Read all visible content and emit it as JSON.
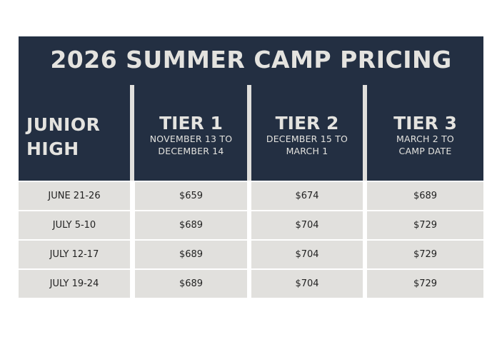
{
  "title": "2026 SUMMER CAMP PRICING",
  "first_header": [
    "JUNIOR",
    "HIGH"
  ],
  "tiers": [
    {
      "label": "TIER 1",
      "dates": [
        "NOVEMBER 13 TO",
        "DECEMBER 14"
      ]
    },
    {
      "label": "TIER 2",
      "dates": [
        "DECEMBER 15 TO",
        "MARCH 1"
      ]
    },
    {
      "label": "TIER 3",
      "dates": [
        "MARCH 2 TO",
        "CAMP DATE"
      ]
    }
  ],
  "rows": [
    {
      "week": "JUNE 21-26",
      "prices": [
        "$659",
        "$674",
        "$689"
      ]
    },
    {
      "week": "JULY 5-10",
      "prices": [
        "$689",
        "$704",
        "$729"
      ]
    },
    {
      "week": "JULY 12-17",
      "prices": [
        "$689",
        "$704",
        "$729"
      ]
    },
    {
      "week": "JULY 19-24",
      "prices": [
        "$689",
        "$704",
        "$729"
      ]
    }
  ],
  "colors": {
    "navy": "#232f42",
    "cell": "#e1e0dd",
    "header_text": "#e4e3df"
  }
}
